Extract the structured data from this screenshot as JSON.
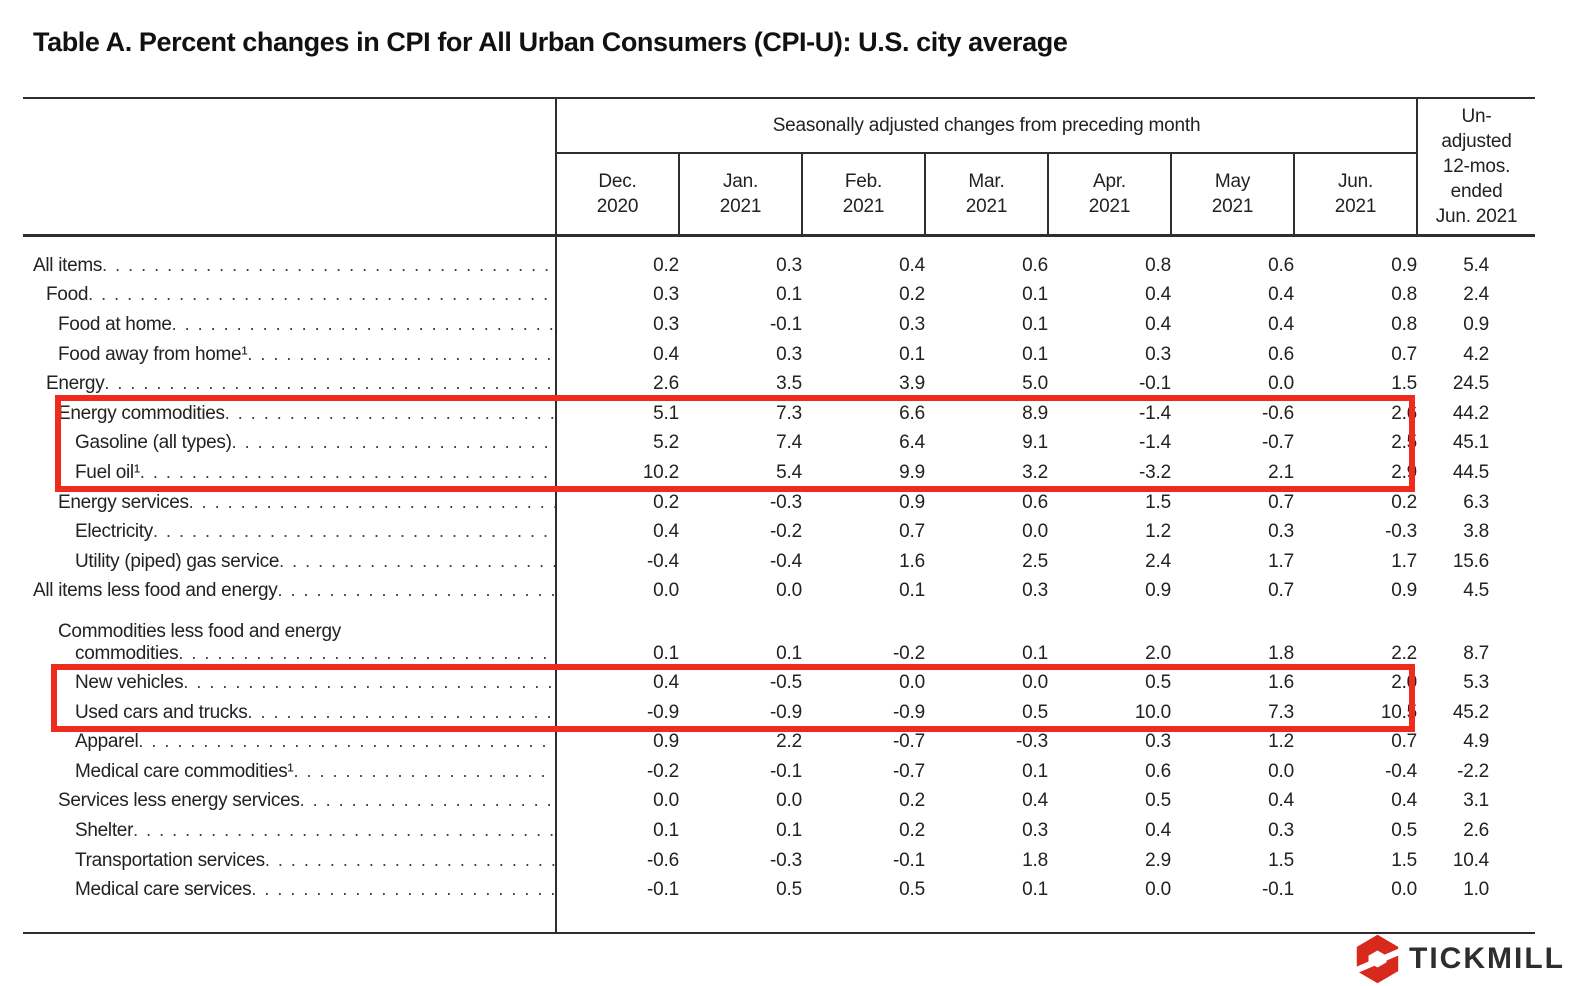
{
  "title": "Table A. Percent changes in CPI for All Urban Consumers (CPI-U): U.S. city average",
  "table": {
    "group_header": "Seasonally adjusted changes from preceding month",
    "months": [
      {
        "month": "Dec.",
        "year": "2020"
      },
      {
        "month": "Jan.",
        "year": "2021"
      },
      {
        "month": "Feb.",
        "year": "2021"
      },
      {
        "month": "Mar.",
        "year": "2021"
      },
      {
        "month": "Apr.",
        "year": "2021"
      },
      {
        "month": "May",
        "year": "2021"
      },
      {
        "month": "Jun.",
        "year": "2021"
      }
    ],
    "unadjusted_lines": [
      "Un-",
      "adjusted",
      "12-mos.",
      "ended",
      "Jun. 2021"
    ],
    "rows": [
      {
        "label": "All items",
        "indent": 0,
        "values": [
          "0.2",
          "0.3",
          "0.4",
          "0.6",
          "0.8",
          "0.6",
          "0.9",
          "5.4"
        ]
      },
      {
        "label": "Food",
        "indent": 1,
        "values": [
          "0.3",
          "0.1",
          "0.2",
          "0.1",
          "0.4",
          "0.4",
          "0.8",
          "2.4"
        ]
      },
      {
        "label": "Food at home",
        "indent": 2,
        "values": [
          "0.3",
          "-0.1",
          "0.3",
          "0.1",
          "0.4",
          "0.4",
          "0.8",
          "0.9"
        ]
      },
      {
        "label": "Food away from home¹",
        "indent": 2,
        "values": [
          "0.4",
          "0.3",
          "0.1",
          "0.1",
          "0.3",
          "0.6",
          "0.7",
          "4.2"
        ]
      },
      {
        "label": "Energy",
        "indent": 1,
        "values": [
          "2.6",
          "3.5",
          "3.9",
          "5.0",
          "-0.1",
          "0.0",
          "1.5",
          "24.5"
        ]
      },
      {
        "label": "Energy commodities",
        "indent": 2,
        "values": [
          "5.1",
          "7.3",
          "6.6",
          "8.9",
          "-1.4",
          "-0.6",
          "2.6",
          "44.2"
        ]
      },
      {
        "label": "Gasoline (all types)",
        "indent": 3,
        "values": [
          "5.2",
          "7.4",
          "6.4",
          "9.1",
          "-1.4",
          "-0.7",
          "2.5",
          "45.1"
        ]
      },
      {
        "label": "Fuel oil¹",
        "indent": 3,
        "values": [
          "10.2",
          "5.4",
          "9.9",
          "3.2",
          "-3.2",
          "2.1",
          "2.9",
          "44.5"
        ]
      },
      {
        "label": "Energy services",
        "indent": 2,
        "values": [
          "0.2",
          "-0.3",
          "0.9",
          "0.6",
          "1.5",
          "0.7",
          "0.2",
          "6.3"
        ]
      },
      {
        "label": "Electricity",
        "indent": 3,
        "values": [
          "0.4",
          "-0.2",
          "0.7",
          "0.0",
          "1.2",
          "0.3",
          "-0.3",
          "3.8"
        ]
      },
      {
        "label": "Utility (piped) gas service",
        "indent": 3,
        "values": [
          "-0.4",
          "-0.4",
          "1.6",
          "2.5",
          "2.4",
          "1.7",
          "1.7",
          "15.6"
        ]
      },
      {
        "label": "All items less food and energy",
        "indent": 0,
        "values": [
          "0.0",
          "0.0",
          "0.1",
          "0.3",
          "0.9",
          "0.7",
          "0.9",
          "4.5"
        ]
      },
      {
        "label": "Commodities less food and energy",
        "label2": "commodities",
        "indent": 2,
        "indent2": 3,
        "values": [
          "0.1",
          "0.1",
          "-0.2",
          "0.1",
          "2.0",
          "1.8",
          "2.2",
          "8.7"
        ]
      },
      {
        "label": "New vehicles",
        "indent": 3,
        "values": [
          "0.4",
          "-0.5",
          "0.0",
          "0.0",
          "0.5",
          "1.6",
          "2.0",
          "5.3"
        ]
      },
      {
        "label": "Used cars and trucks",
        "indent": 3,
        "values": [
          "-0.9",
          "-0.9",
          "-0.9",
          "0.5",
          "10.0",
          "7.3",
          "10.5",
          "45.2"
        ]
      },
      {
        "label": "Apparel",
        "indent": 3,
        "values": [
          "0.9",
          "2.2",
          "-0.7",
          "-0.3",
          "0.3",
          "1.2",
          "0.7",
          "4.9"
        ]
      },
      {
        "label": "Medical care commodities¹",
        "indent": 3,
        "values": [
          "-0.2",
          "-0.1",
          "-0.7",
          "0.1",
          "0.6",
          "0.0",
          "-0.4",
          "-2.2"
        ]
      },
      {
        "label": "Services less energy services",
        "indent": 2,
        "values": [
          "0.0",
          "0.0",
          "0.2",
          "0.4",
          "0.5",
          "0.4",
          "0.4",
          "3.1"
        ]
      },
      {
        "label": "Shelter",
        "indent": 3,
        "values": [
          "0.1",
          "0.1",
          "0.2",
          "0.3",
          "0.4",
          "0.3",
          "0.5",
          "2.6"
        ]
      },
      {
        "label": "Transportation services",
        "indent": 3,
        "values": [
          "-0.6",
          "-0.3",
          "-0.1",
          "1.8",
          "2.9",
          "1.5",
          "1.5",
          "10.4"
        ]
      },
      {
        "label": "Medical care services",
        "indent": 3,
        "values": [
          "-0.1",
          "0.5",
          "0.5",
          "0.1",
          "0.0",
          "-0.1",
          "0.0",
          "1.0"
        ]
      }
    ],
    "highlights": [
      {
        "name": "energy-commodities-box",
        "rows": [
          "Energy commodities",
          "Gasoline (all types)",
          "Fuel oil¹"
        ],
        "color": "#ee2b1d"
      },
      {
        "name": "vehicles-box",
        "rows": [
          "New vehicles",
          "Used cars and trucks"
        ],
        "color": "#ee2b1d"
      }
    ]
  },
  "logo": {
    "brand": "TICKMILL",
    "icon": "tickmill-hexagon",
    "red": "#d8291d",
    "text_color": "#2e2e2d"
  }
}
